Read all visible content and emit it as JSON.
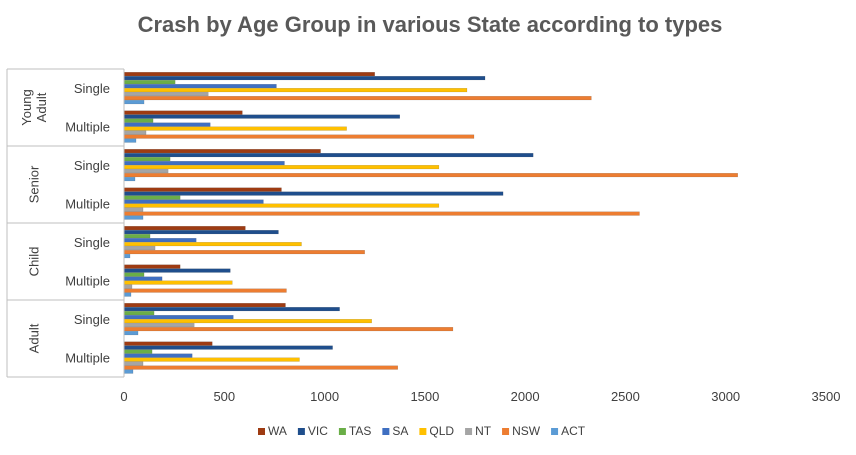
{
  "chart_data": {
    "type": "bar",
    "orientation": "horizontal",
    "title": "Crash by Age Group in various State according to types",
    "xlabel": "",
    "ylabel": "",
    "xlim": [
      0,
      3500
    ],
    "x_ticks": [
      "0",
      "500",
      "1000",
      "1500",
      "2000",
      "2500",
      "3000",
      "3500"
    ],
    "grid": false,
    "legend_position": "bottom",
    "groups": [
      {
        "label": "Young Adult",
        "categories": [
          "Single",
          "Multiple"
        ]
      },
      {
        "label": "Senior",
        "categories": [
          "Single",
          "Multiple"
        ]
      },
      {
        "label": "Child",
        "categories": [
          "Single",
          "Multiple"
        ]
      },
      {
        "label": "Adult",
        "categories": [
          "Single",
          "Multiple"
        ]
      }
    ],
    "series": [
      {
        "name": "WA",
        "color": "#9E3B12",
        "values": [
          1250,
          590,
          980,
          785,
          605,
          280,
          805,
          440
        ]
      },
      {
        "name": "VIC",
        "color": "#1F4E8C",
        "values": [
          1800,
          1375,
          2040,
          1890,
          770,
          530,
          1075,
          1040
        ]
      },
      {
        "name": "TAS",
        "color": "#6AAE47",
        "values": [
          255,
          145,
          230,
          280,
          130,
          100,
          150,
          140
        ]
      },
      {
        "name": "SA",
        "color": "#3F6FC1",
        "values": [
          760,
          430,
          800,
          695,
          360,
          190,
          545,
          340
        ]
      },
      {
        "name": "QLD",
        "color": "#FFC000",
        "values": [
          1710,
          1110,
          1570,
          1570,
          885,
          540,
          1235,
          875
        ]
      },
      {
        "name": "NT",
        "color": "#A5A5A5",
        "values": [
          420,
          110,
          220,
          95,
          155,
          40,
          350,
          95
        ]
      },
      {
        "name": "NSW",
        "color": "#ED7D31",
        "values": [
          2330,
          1745,
          3060,
          2570,
          1200,
          810,
          1640,
          1365
        ]
      },
      {
        "name": "ACT",
        "color": "#5B9BD5",
        "values": [
          100,
          60,
          55,
          95,
          30,
          35,
          70,
          45
        ]
      }
    ]
  }
}
